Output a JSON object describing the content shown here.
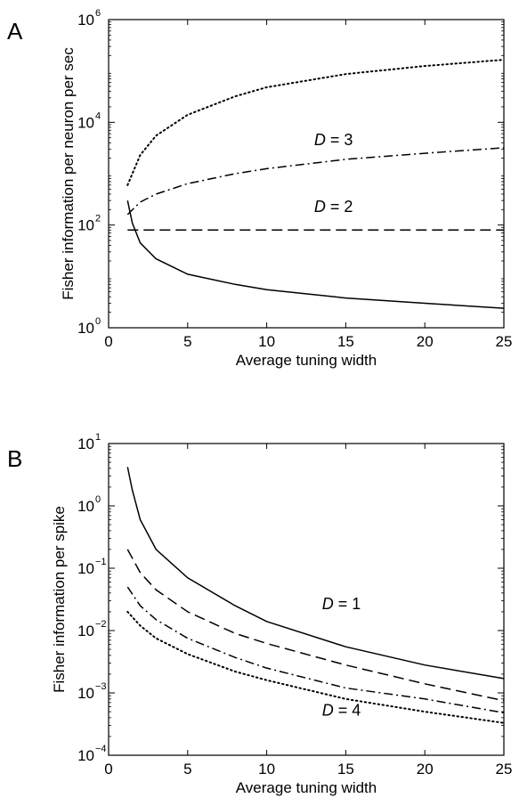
{
  "chart_data": [
    {
      "panel_label": "A",
      "type": "line",
      "xlabel": "Average tuning width",
      "ylabel": "Fisher information per neuron per sec",
      "xlim": [
        0,
        25
      ],
      "ylim": [
        1,
        1000000
      ],
      "yscale": "log",
      "xticks": [
        0,
        5,
        10,
        15,
        20,
        25
      ],
      "yticks": [
        {
          "value": 1,
          "base": "10",
          "exp": "0"
        },
        {
          "value": 100,
          "base": "10",
          "exp": "2"
        },
        {
          "value": 10000,
          "base": "10",
          "exp": "4"
        },
        {
          "value": 1000000,
          "base": "10",
          "exp": "6"
        }
      ],
      "grid": false,
      "series": [
        {
          "style": "dotted",
          "x": [
            1.2,
            2,
            3,
            5,
            8,
            10,
            15,
            20,
            25
          ],
          "y": [
            600,
            2300,
            5500,
            14000,
            32000,
            48000,
            87000,
            125000,
            165000
          ]
        },
        {
          "name": "D = 3",
          "style": "dashdot",
          "x": [
            1.2,
            2,
            3,
            5,
            8,
            10,
            15,
            20,
            25
          ],
          "y": [
            160,
            280,
            400,
            640,
            1000,
            1250,
            1900,
            2500,
            3200
          ]
        },
        {
          "name": "D = 2",
          "style": "dashed",
          "x": [
            1.2,
            25
          ],
          "y": [
            80,
            80
          ]
        },
        {
          "style": "solid",
          "x": [
            1.2,
            1.5,
            2,
            3,
            5,
            8,
            10,
            15,
            20,
            25
          ],
          "y": [
            300,
            110,
            45,
            22,
            11,
            7,
            5.5,
            3.8,
            3,
            2.4
          ]
        }
      ],
      "annotations": [
        {
          "prefix": "D",
          "suffix": " = 3",
          "x": 13,
          "y": 3600
        },
        {
          "prefix": "D",
          "suffix": " = 2",
          "x": 13,
          "y": 180
        }
      ]
    },
    {
      "panel_label": "B",
      "type": "line",
      "xlabel": "Average tuning width",
      "ylabel": "Fisher information per spike",
      "xlim": [
        0,
        25
      ],
      "ylim": [
        0.0001,
        10
      ],
      "yscale": "log",
      "xticks": [
        0,
        5,
        10,
        15,
        20,
        25
      ],
      "yticks": [
        {
          "value": 0.0001,
          "base": "10",
          "exp": "−4"
        },
        {
          "value": 0.001,
          "base": "10",
          "exp": "−3"
        },
        {
          "value": 0.01,
          "base": "10",
          "exp": "−2"
        },
        {
          "value": 0.1,
          "base": "10",
          "exp": "−1"
        },
        {
          "value": 1,
          "base": "10",
          "exp": "0"
        },
        {
          "value": 10,
          "base": "10",
          "exp": "1"
        }
      ],
      "grid": false,
      "series": [
        {
          "name": "D = 1",
          "style": "solid",
          "x": [
            1.2,
            1.5,
            2,
            3,
            5,
            8,
            10,
            15,
            20,
            25
          ],
          "y": [
            4.2,
            1.8,
            0.6,
            0.2,
            0.07,
            0.025,
            0.014,
            0.0055,
            0.0028,
            0.0017
          ]
        },
        {
          "style": "dashed",
          "x": [
            1.2,
            2,
            3,
            5,
            8,
            10,
            15,
            20,
            25
          ],
          "y": [
            0.2,
            0.085,
            0.045,
            0.02,
            0.009,
            0.0062,
            0.0028,
            0.0014,
            0.00075
          ]
        },
        {
          "style": "dashdot",
          "x": [
            1.2,
            2,
            3,
            5,
            8,
            10,
            15,
            20,
            25
          ],
          "y": [
            0.05,
            0.025,
            0.015,
            0.0075,
            0.0037,
            0.0025,
            0.0012,
            0.0008,
            0.00048
          ]
        },
        {
          "name": "D = 4",
          "style": "dotted",
          "x": [
            1.2,
            2,
            3,
            5,
            8,
            10,
            15,
            20,
            25
          ],
          "y": [
            0.02,
            0.012,
            0.0075,
            0.0042,
            0.0022,
            0.0016,
            0.0008,
            0.0005,
            0.00033
          ]
        }
      ],
      "annotations": [
        {
          "prefix": "D",
          "suffix": " = 1",
          "x": 13.5,
          "y": 0.022
        },
        {
          "prefix": "D",
          "suffix": " = 4",
          "x": 13.5,
          "y": 0.00043
        }
      ]
    }
  ]
}
